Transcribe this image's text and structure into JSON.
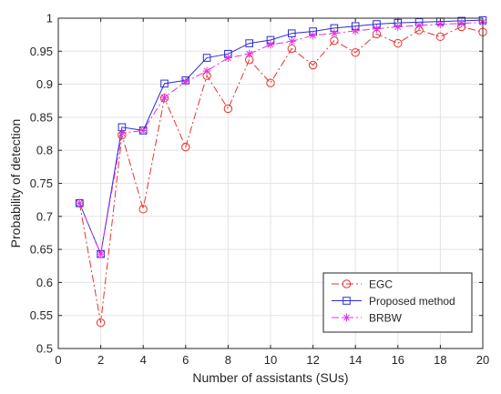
{
  "chart_data": {
    "type": "line",
    "xlabel": "Number of assistants (SUs)",
    "ylabel": "Probability of detection",
    "xlim": [
      0,
      20
    ],
    "ylim": [
      0.5,
      1
    ],
    "grid": true,
    "legend_position": "bottom-right",
    "x_ticks": [
      0,
      2,
      4,
      6,
      8,
      10,
      12,
      14,
      16,
      18,
      20
    ],
    "y_ticks": [
      0.5,
      0.55,
      0.6,
      0.65,
      0.7,
      0.75,
      0.8,
      0.85,
      0.9,
      0.95,
      1
    ],
    "x_tick_labels": [
      "0",
      "2",
      "4",
      "6",
      "8",
      "10",
      "12",
      "14",
      "16",
      "18",
      "20"
    ],
    "y_tick_labels": [
      "0.5",
      "0.55",
      "0.6",
      "0.65",
      "0.7",
      "0.75",
      "0.8",
      "0.85",
      "0.9",
      "0.95",
      "1"
    ],
    "x": [
      1,
      2,
      3,
      4,
      5,
      6,
      7,
      8,
      9,
      10,
      11,
      12,
      13,
      14,
      15,
      16,
      17,
      18,
      19,
      20
    ],
    "series": [
      {
        "name": "EGC",
        "color": "#e8322c",
        "marker": "circle",
        "line_style": "dashdot",
        "values": [
          0.72,
          0.539,
          0.823,
          0.711,
          0.879,
          0.805,
          0.913,
          0.863,
          0.937,
          0.902,
          0.954,
          0.929,
          0.966,
          0.948,
          0.976,
          0.962,
          0.982,
          0.972,
          0.987,
          0.979
        ]
      },
      {
        "name": "Proposed method",
        "color": "#2b2bd6",
        "marker": "square",
        "line_style": "solid",
        "values": [
          0.72,
          0.643,
          0.835,
          0.83,
          0.901,
          0.906,
          0.94,
          0.946,
          0.962,
          0.967,
          0.977,
          0.98,
          0.985,
          0.988,
          0.991,
          0.993,
          0.994,
          0.995,
          0.996,
          0.997
        ]
      },
      {
        "name": "BRBW",
        "color": "#e033e0",
        "marker": "asterisk",
        "line_style": "dashdot",
        "values": [
          0.72,
          0.643,
          0.826,
          0.83,
          0.88,
          0.904,
          0.92,
          0.94,
          0.946,
          0.96,
          0.965,
          0.974,
          0.977,
          0.981,
          0.984,
          0.987,
          0.989,
          0.991,
          0.992,
          0.994
        ]
      }
    ]
  }
}
